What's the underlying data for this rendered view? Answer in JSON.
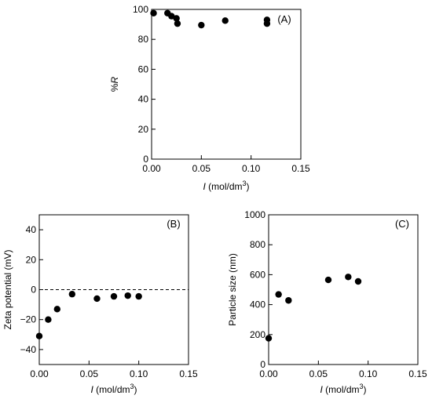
{
  "chart_data": [
    {
      "type": "scatter",
      "panel": "(A)",
      "xlabel_var": "I",
      "xlabel_unit": " (mol/dm",
      "xlabel_sup": "3",
      "xlabel_close": ")",
      "ylabel_prefix": "%",
      "ylabel_var": "R",
      "xlim": [
        0,
        0.15
      ],
      "ylim": [
        0,
        100
      ],
      "xticks": [
        0,
        0.05,
        0.1,
        0.15
      ],
      "xtick_labels": [
        "0.00",
        "0.05",
        "0.10",
        "0.15"
      ],
      "yticks": [
        0,
        20,
        40,
        60,
        80,
        100
      ],
      "ytick_labels": [
        "0",
        "20",
        "40",
        "60",
        "80",
        "100"
      ],
      "points": [
        {
          "x": 0.002,
          "y": 97.5
        },
        {
          "x": 0.016,
          "y": 97.5
        },
        {
          "x": 0.02,
          "y": 95.5
        },
        {
          "x": 0.025,
          "y": 94.0
        },
        {
          "x": 0.026,
          "y": 90.5
        },
        {
          "x": 0.05,
          "y": 89.5
        },
        {
          "x": 0.074,
          "y": 92.5
        },
        {
          "x": 0.116,
          "y": 93.0
        },
        {
          "x": 0.116,
          "y": 90.5
        }
      ]
    },
    {
      "type": "scatter",
      "panel": "(B)",
      "xlabel_var": "I",
      "xlabel_unit": " (mol/dm",
      "xlabel_sup": "3",
      "xlabel_close": ")",
      "ylabel": "Zeta potential (mV)",
      "xlim": [
        0,
        0.15
      ],
      "ylim": [
        -50,
        50
      ],
      "xticks": [
        0,
        0.05,
        0.1,
        0.15
      ],
      "xtick_labels": [
        "0.00",
        "0.05",
        "0.10",
        "0.15"
      ],
      "yticks": [
        -40,
        -20,
        0,
        20,
        40
      ],
      "ytick_labels": [
        "−40",
        "−20",
        "0",
        "20",
        "40"
      ],
      "reference_line_y": 0,
      "points": [
        {
          "x": 0.0,
          "y": -31
        },
        {
          "x": 0.009,
          "y": -20
        },
        {
          "x": 0.018,
          "y": -13
        },
        {
          "x": 0.033,
          "y": -3
        },
        {
          "x": 0.058,
          "y": -6
        },
        {
          "x": 0.075,
          "y": -4.5
        },
        {
          "x": 0.089,
          "y": -4
        },
        {
          "x": 0.1,
          "y": -4.5
        }
      ]
    },
    {
      "type": "scatter",
      "panel": "(C)",
      "xlabel_var": "I",
      "xlabel_unit": " (mol/dm",
      "xlabel_sup": "3",
      "xlabel_close": ")",
      "ylabel": "Particle size (nm)",
      "xlim": [
        0,
        0.15
      ],
      "ylim": [
        0,
        1000
      ],
      "xticks": [
        0,
        0.05,
        0.1,
        0.15
      ],
      "xtick_labels": [
        "0.00",
        "0.05",
        "0.10",
        "0.15"
      ],
      "yticks": [
        0,
        200,
        400,
        600,
        800,
        1000
      ],
      "ytick_labels": [
        "0",
        "200",
        "400",
        "600",
        "800",
        "1000"
      ],
      "points": [
        {
          "x": 0.0,
          "y": 175
        },
        {
          "x": 0.01,
          "y": 468
        },
        {
          "x": 0.02,
          "y": 428
        },
        {
          "x": 0.06,
          "y": 565
        },
        {
          "x": 0.08,
          "y": 585
        },
        {
          "x": 0.09,
          "y": 555
        }
      ]
    }
  ]
}
